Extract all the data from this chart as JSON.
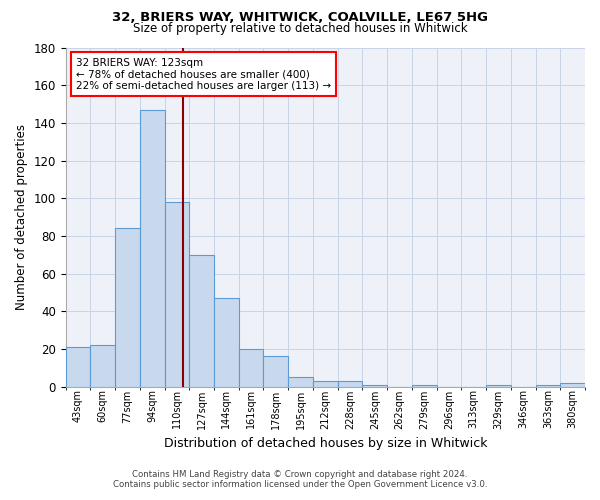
{
  "title1": "32, BRIERS WAY, WHITWICK, COALVILLE, LE67 5HG",
  "title2": "Size of property relative to detached houses in Whitwick",
  "xlabel": "Distribution of detached houses by size in Whitwick",
  "ylabel": "Number of detached properties",
  "categories": [
    "43sqm",
    "60sqm",
    "77sqm",
    "94sqm",
    "110sqm",
    "127sqm",
    "144sqm",
    "161sqm",
    "178sqm",
    "195sqm",
    "212sqm",
    "228sqm",
    "245sqm",
    "262sqm",
    "279sqm",
    "296sqm",
    "313sqm",
    "329sqm",
    "346sqm",
    "363sqm",
    "380sqm"
  ],
  "values": [
    21,
    22,
    84,
    147,
    98,
    70,
    47,
    20,
    16,
    5,
    3,
    3,
    1,
    0,
    1,
    0,
    0,
    1,
    0,
    1,
    2
  ],
  "bar_color": "#c8d9ed",
  "bar_edge_color": "#5b9bd5",
  "grid_color": "#c8d4e8",
  "property_size_label": "32 BRIERS WAY: 123sqm",
  "pct_smaller": 78,
  "n_smaller": 400,
  "pct_larger_semi": 22,
  "n_larger_semi": 113,
  "vline_color": "#8b0000",
  "ylim": [
    0,
    180
  ],
  "yticks": [
    0,
    20,
    40,
    60,
    80,
    100,
    120,
    140,
    160,
    180
  ],
  "footnote1": "Contains HM Land Registry data © Crown copyright and database right 2024.",
  "footnote2": "Contains public sector information licensed under the Open Government Licence v3.0.",
  "bg_color": "#ffffff",
  "plot_bg_color": "#eef2f8"
}
